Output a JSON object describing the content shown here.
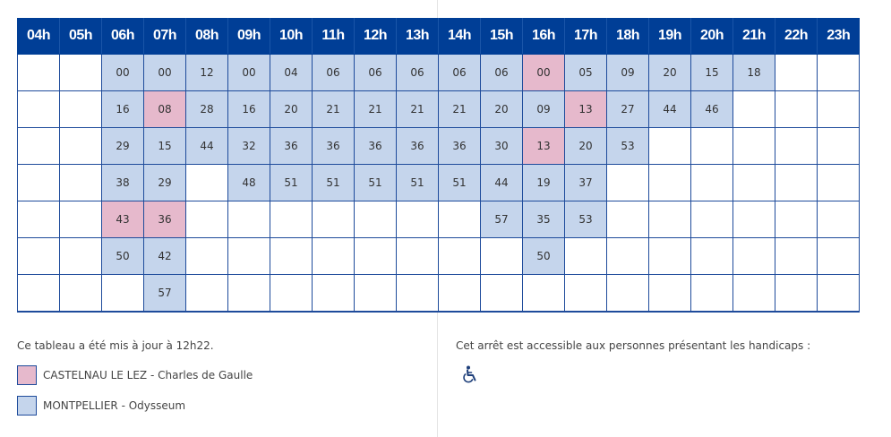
{
  "hours": [
    "04h",
    "05h",
    "06h",
    "07h",
    "08h",
    "09h",
    "10h",
    "11h",
    "12h",
    "13h",
    "14h",
    "15h",
    "16h",
    "17h",
    "18h",
    "19h",
    "20h",
    "21h",
    "22h",
    "23h"
  ],
  "rows": [
    [
      "",
      "",
      "00",
      "00",
      "12",
      "00",
      "04",
      "06",
      "06",
      "06",
      "06",
      "06",
      "00",
      "05",
      "09",
      "20",
      "15",
      "18",
      "",
      ""
    ],
    [
      "",
      "",
      "16",
      "08",
      "28",
      "16",
      "20",
      "21",
      "21",
      "21",
      "21",
      "20",
      "09",
      "13",
      "27",
      "44",
      "46",
      "",
      "",
      ""
    ],
    [
      "",
      "",
      "29",
      "15",
      "44",
      "32",
      "36",
      "36",
      "36",
      "36",
      "36",
      "30",
      "13",
      "20",
      "53",
      "",
      "",
      "",
      "",
      ""
    ],
    [
      "",
      "",
      "38",
      "29",
      "",
      "48",
      "51",
      "51",
      "51",
      "51",
      "51",
      "44",
      "19",
      "37",
      "",
      "",
      "",
      "",
      "",
      ""
    ],
    [
      "",
      "",
      "43",
      "36",
      "",
      "",
      "",
      "",
      "",
      "",
      "",
      "57",
      "35",
      "53",
      "",
      "",
      "",
      "",
      "",
      ""
    ],
    [
      "",
      "",
      "50",
      "42",
      "",
      "",
      "",
      "",
      "",
      "",
      "",
      "",
      "50",
      "",
      "",
      "",
      "",
      "",
      "",
      ""
    ],
    [
      "",
      "",
      "",
      "57",
      "",
      "",
      "",
      "",
      "",
      "",
      "",
      "",
      "",
      "",
      "",
      "",
      "",
      "",
      "",
      ""
    ]
  ],
  "highlight": [
    [
      "",
      "",
      "b",
      "b",
      "b",
      "b",
      "b",
      "b",
      "b",
      "b",
      "b",
      "b",
      "p",
      "b",
      "b",
      "b",
      "b",
      "b",
      "",
      ""
    ],
    [
      "",
      "",
      "b",
      "p",
      "b",
      "b",
      "b",
      "b",
      "b",
      "b",
      "b",
      "b",
      "b",
      "p",
      "b",
      "b",
      "b",
      "",
      "",
      ""
    ],
    [
      "",
      "",
      "b",
      "b",
      "b",
      "b",
      "b",
      "b",
      "b",
      "b",
      "b",
      "b",
      "p",
      "b",
      "b",
      "",
      "",
      "",
      "",
      ""
    ],
    [
      "",
      "",
      "b",
      "b",
      "",
      "b",
      "b",
      "b",
      "b",
      "b",
      "b",
      "b",
      "b",
      "b",
      "",
      "",
      "",
      "",
      "",
      ""
    ],
    [
      "",
      "",
      "p",
      "p",
      "",
      "",
      "",
      "",
      "",
      "",
      "",
      "b",
      "b",
      "b",
      "",
      "",
      "",
      "",
      "",
      ""
    ],
    [
      "",
      "",
      "b",
      "b",
      "",
      "",
      "",
      "",
      "",
      "",
      "",
      "",
      "b",
      "",
      "",
      "",
      "",
      "",
      "",
      ""
    ],
    [
      "",
      "",
      "",
      "b",
      "",
      "",
      "",
      "",
      "",
      "",
      "",
      "",
      "",
      "",
      "",
      "",
      "",
      "",
      "",
      ""
    ]
  ],
  "updated_text": "Ce tableau a été mis à jour à 12h22.",
  "legend": [
    {
      "label": "CASTELNAU LE LEZ - Charles de Gaulle",
      "color": "#e6b9cc"
    },
    {
      "label": "MONTPELLIER - Odysseum",
      "color": "#c5d5ec"
    }
  ],
  "accessibility_text": "Cet arrêt est accessible aux personnes présentant les handicaps :",
  "accessibility_icon": "wheelchair-icon",
  "colors": {
    "header": "#003e96",
    "border": "#1e4b9b",
    "blue_cell": "#c5d5ec",
    "pink_cell": "#e6b9cc"
  }
}
